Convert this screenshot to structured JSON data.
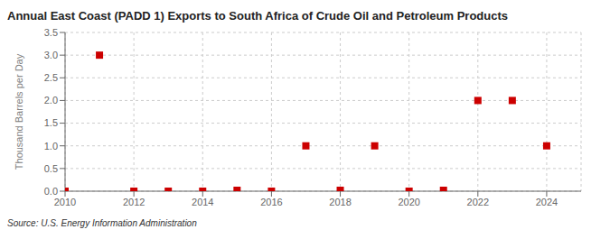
{
  "chart_data": {
    "type": "scatter",
    "title": "Annual East Coast (PADD 1) Exports to South Africa of Crude Oil and Petroleum Products",
    "ylabel": "Thousand Barrels per Day",
    "source": "Source: U.S. Energy Information Administration",
    "x": [
      2010,
      2011,
      2012,
      2013,
      2014,
      2015,
      2016,
      2017,
      2018,
      2019,
      2020,
      2021,
      2022,
      2023,
      2024
    ],
    "values": [
      0.0,
      3.0,
      0.0,
      0.0,
      0.0,
      0.02,
      0.0,
      1.0,
      0.02,
      1.0,
      0.0,
      0.02,
      2.0,
      2.0,
      1.0
    ],
    "color": "#cc0000",
    "marker": "square",
    "xlim": [
      2010,
      2025
    ],
    "ylim": [
      0.0,
      3.5
    ],
    "xticks": [
      2010,
      2012,
      2014,
      2016,
      2018,
      2020,
      2022,
      2024
    ],
    "yticks": [
      {
        "value": 0.0,
        "label": "0.0"
      },
      0.5,
      {
        "value": 1.0,
        "label": "1.0"
      },
      1.5,
      {
        "value": 2.0,
        "label": "2.0"
      },
      2.5,
      {
        "value": 3.0,
        "label": "3.0"
      },
      3.5
    ],
    "grid": true
  }
}
